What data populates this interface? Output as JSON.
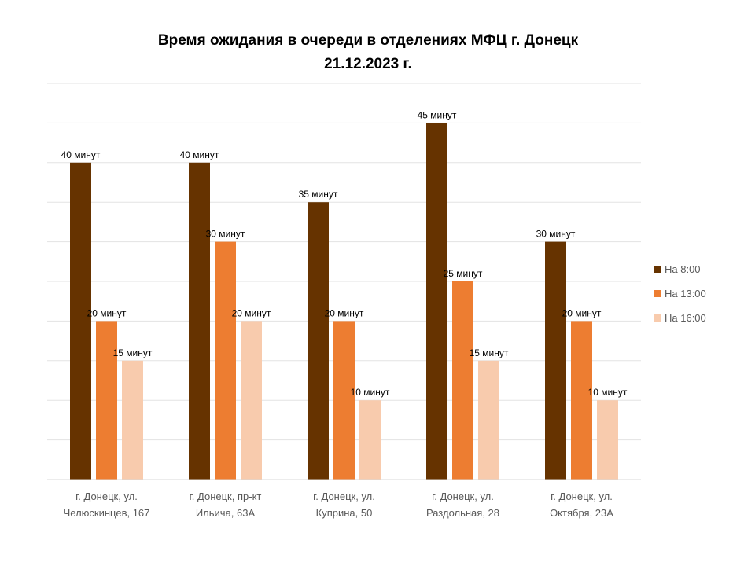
{
  "chart_data": {
    "type": "bar",
    "title": [
      "Время ожидания в очереди в отделениях МФЦ г. Донецк",
      "21.12.2023 г."
    ],
    "categories": [
      [
        "г. Донецк, ул.",
        "Челюскинцев, 167"
      ],
      [
        "г. Донецк, пр-кт",
        "Ильича, 63А"
      ],
      [
        "г. Донецк, ул.",
        "Куприна, 50"
      ],
      [
        "г. Донецк, ул.",
        "Раздольная, 28"
      ],
      [
        "г. Донецк, ул.",
        "Октября, 23А"
      ]
    ],
    "series": [
      {
        "name": "На 8:00",
        "color": "#663300",
        "values": [
          40,
          40,
          35,
          45,
          30
        ],
        "labels": [
          "40 минут",
          "40 минут",
          "35 минут",
          "45 минут",
          "30 минут"
        ]
      },
      {
        "name": "На 13:00",
        "color": "#ed7d31",
        "values": [
          20,
          30,
          20,
          25,
          20
        ],
        "labels": [
          "20 минут",
          "30 минут",
          "20 минут",
          "25 минут",
          "20 минут"
        ]
      },
      {
        "name": "На 16:00",
        "color": "#f8cbad",
        "values": [
          15,
          20,
          10,
          15,
          10
        ],
        "labels": [
          "15 минут",
          "20 минут",
          "10 минут",
          "15 минут",
          "10 минут"
        ]
      }
    ],
    "ylim": [
      0,
      50
    ],
    "y_major_step": 5,
    "grid": true,
    "legend_position": "right",
    "xlabel": "",
    "ylabel": ""
  }
}
